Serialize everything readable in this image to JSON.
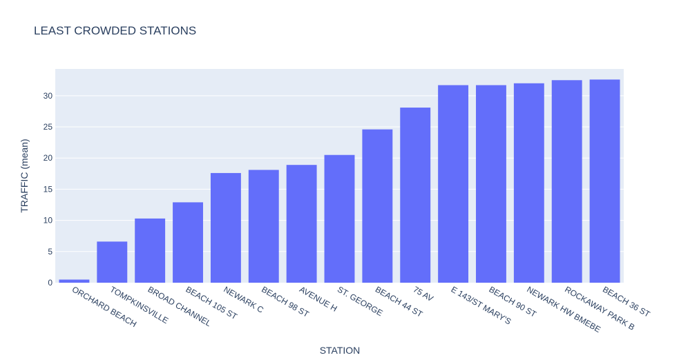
{
  "chart_data": {
    "type": "bar",
    "title": "LEAST CROWDED STATIONS",
    "xlabel": "STATION",
    "ylabel": "TRAFFIC (mean)",
    "categories": [
      "ORCHARD BEACH",
      "TOMPKINSVILLE",
      "BROAD CHANNEL",
      "BEACH 105 ST",
      "NEWARK C",
      "BEACH 98 ST",
      "AVENUE H",
      "ST. GEORGE",
      "BEACH 44 ST",
      "75 AV",
      "E 143/ST MARY'S",
      "BEACH 90 ST",
      "NEWARK HW BMEBE",
      "ROCKAWAY PARK B",
      "BEACH 36 ST"
    ],
    "values": [
      0.5,
      6.6,
      10.3,
      12.9,
      17.6,
      18.1,
      18.9,
      20.5,
      24.6,
      28.1,
      31.7,
      31.7,
      32.0,
      32.5,
      32.6
    ],
    "ylim": [
      0,
      34.3
    ],
    "yticks": [
      0,
      5,
      10,
      15,
      20,
      25,
      30
    ],
    "bar_color": "#636efa",
    "plot_background": "#e5ecf6",
    "grid": true
  }
}
